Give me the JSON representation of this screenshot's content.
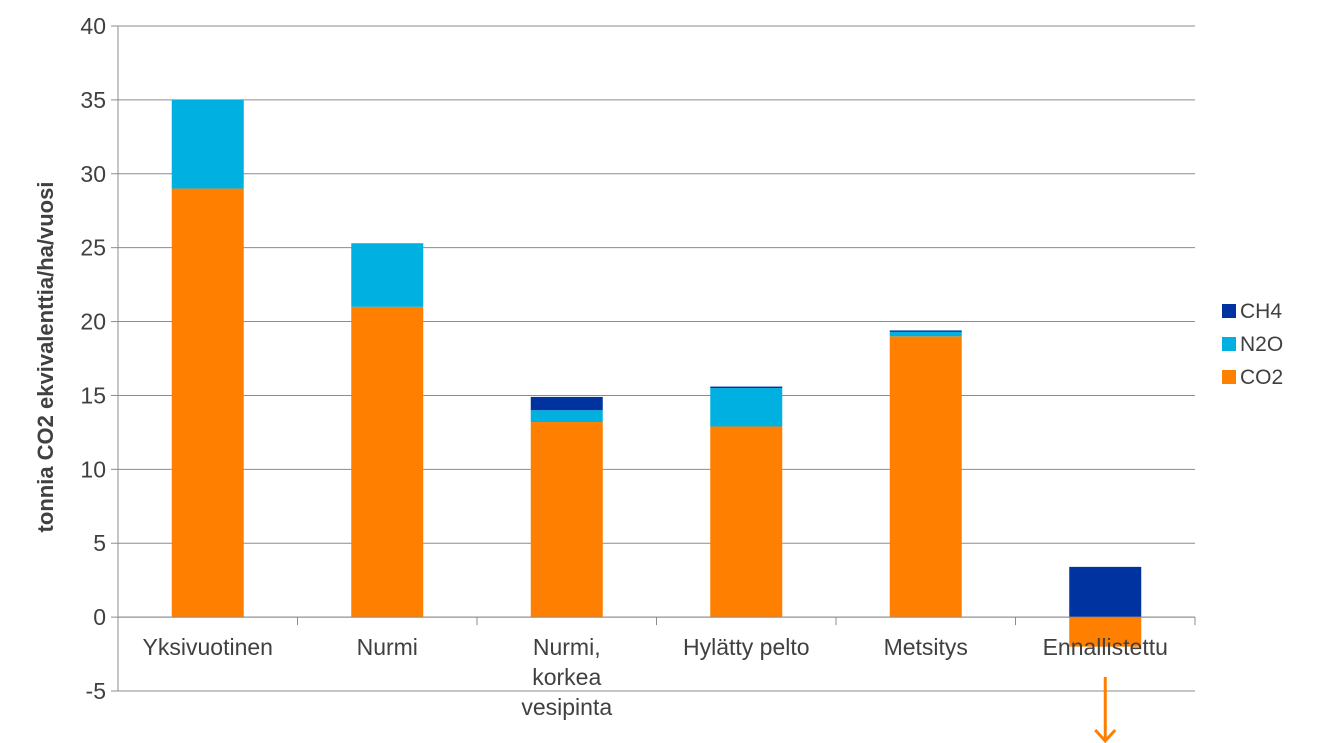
{
  "chart_data": {
    "type": "bar",
    "stacked": true,
    "ylabel": "tonnia CO2 ekvivalenttia/ha/vuosi",
    "ylim": [
      -5,
      40
    ],
    "yticks": [
      -5,
      0,
      5,
      10,
      15,
      20,
      25,
      30,
      35,
      40
    ],
    "grid": true,
    "legend_position": "right",
    "categories": [
      [
        "Yksivuotinen"
      ],
      [
        "Nurmi"
      ],
      [
        "Nurmi,",
        "korkea",
        "vesipinta"
      ],
      [
        "Hylätty pelto"
      ],
      [
        "Metsitys"
      ],
      [
        "Ennallistettu"
      ]
    ],
    "series": [
      {
        "name": "CO2",
        "color": "#FF8000",
        "values": [
          29.0,
          21.0,
          13.2,
          12.9,
          19.0,
          -2.0
        ]
      },
      {
        "name": "N2O",
        "color": "#00B0E0",
        "values": [
          6.0,
          4.3,
          0.8,
          2.6,
          0.3,
          0.0
        ]
      },
      {
        "name": "CH4",
        "color": "#0033A0",
        "values": [
          0.0,
          0.0,
          0.9,
          0.1,
          0.1,
          3.4
        ]
      }
    ],
    "legend_order": [
      "CH4",
      "N2O",
      "CO2"
    ],
    "annotations": [
      {
        "type": "arrow-down",
        "category_index": 5,
        "color": "#FF8000"
      }
    ]
  }
}
